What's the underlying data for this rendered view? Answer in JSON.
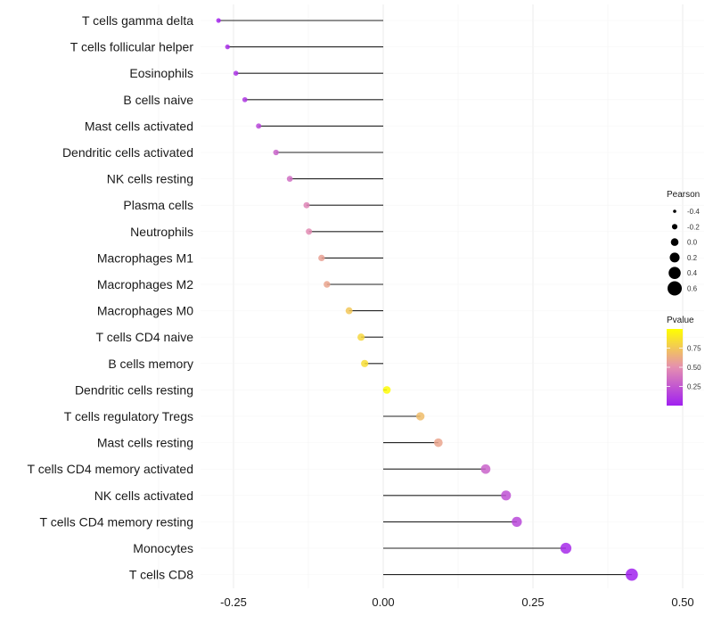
{
  "chart_data": {
    "type": "lollipop",
    "title": "",
    "xlabel": "",
    "ylabel": "",
    "xlim": [
      -0.3,
      0.66
    ],
    "x_ticks": [
      -0.25,
      0.0,
      0.25,
      0.5
    ],
    "x_tick_labels": [
      "-0.25",
      "0.00",
      "0.25",
      "0.50"
    ],
    "grid": true,
    "categories": [
      "T cells gamma delta",
      "T cells follicular helper",
      "Eosinophils",
      "B cells naive",
      "Mast cells activated",
      "Dendritic cells activated",
      "NK cells resting",
      "Plasma cells",
      "Neutrophils",
      "Macrophages M1",
      "Macrophages M2",
      "Macrophages M0",
      "T cells CD4 naive",
      "B cells memory",
      "Dendritic cells resting",
      "T cells regulatory  Tregs ",
      "Mast cells resting",
      "T cells CD4 memory activated",
      "NK cells activated",
      "T cells CD4 memory resting",
      "Monocytes",
      "T cells CD8"
    ],
    "pearson": [
      -0.275,
      -0.26,
      -0.246,
      -0.231,
      -0.208,
      -0.179,
      -0.156,
      -0.128,
      -0.124,
      -0.103,
      -0.094,
      -0.057,
      -0.037,
      -0.031,
      0.006,
      0.062,
      0.092,
      0.171,
      0.205,
      0.223,
      0.305,
      0.415
    ],
    "pvalue": [
      0.02,
      0.06,
      0.08,
      0.1,
      0.18,
      0.3,
      0.35,
      0.45,
      0.48,
      0.58,
      0.6,
      0.75,
      0.82,
      0.85,
      0.98,
      0.7,
      0.6,
      0.3,
      0.22,
      0.18,
      0.05,
      0.01
    ],
    "legend": {
      "size": {
        "title": "Pearson",
        "values": [
          -0.4,
          -0.2,
          0.0,
          0.2,
          0.4,
          0.6
        ],
        "labels": [
          "-0.4",
          "-0.2",
          "0.0",
          "0.2",
          "0.4",
          "0.6"
        ]
      },
      "color": {
        "title": "Pvalue",
        "ticks": [
          0.25,
          0.5,
          0.75
        ],
        "labels": [
          "0.25",
          "0.50",
          "0.75"
        ],
        "range": [
          0,
          1
        ],
        "low_color": "#a020f0",
        "mid_color": "#e58fb0",
        "high_color": "#ffff00"
      },
      "placement": "right"
    }
  }
}
